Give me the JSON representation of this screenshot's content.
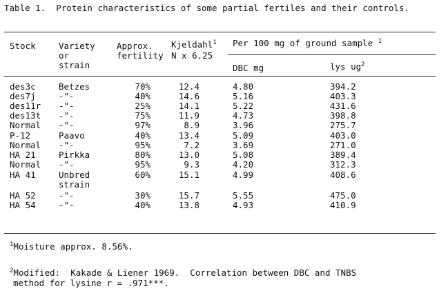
{
  "title": "Table 1.  Protein characteristics of some partial fertiles and their controls.",
  "headers": {
    "stock": "Stock",
    "variety_l1": "Variety",
    "variety_l2": "or",
    "variety_l3": "strain",
    "fertility_l1": "Approx.",
    "fertility_l2": "fertility",
    "kjeldahl_l1": "Kjeldahl",
    "kjeldahl_sup": "1",
    "kjeldahl_l2": "N x 6.25",
    "per100": "Per 100 mg of ground sample",
    "per100_sup": "1",
    "dbc": "DBC mg",
    "lys": "lys ug",
    "lys_sup": "2"
  },
  "rows": [
    {
      "stock": "des3c",
      "variety": "Betzes",
      "fertility": "70%",
      "kjeldahl": "12.4",
      "dbc": "4.80",
      "lys": "394.2"
    },
    {
      "stock": "des7j",
      "variety": "-\"-",
      "fertility": "40%",
      "kjeldahl": "14.6",
      "dbc": "5.16",
      "lys": "403.3"
    },
    {
      "stock": "des11r",
      "variety": "-\"-",
      "fertility": "25%",
      "kjeldahl": "14.1",
      "dbc": "5.22",
      "lys": "431.6"
    },
    {
      "stock": "des13t",
      "variety": "-\"-",
      "fertility": "75%",
      "kjeldahl": "11.9",
      "dbc": "4.73",
      "lys": "398.8"
    },
    {
      "stock": "Normal",
      "variety": "-\"-",
      "fertility": "97%",
      "kjeldahl": "8.9",
      "dbc": "3.96",
      "lys": "275.7"
    },
    {
      "stock": "P-12",
      "variety": "Paavo",
      "fertility": "40%",
      "kjeldahl": "13.4",
      "dbc": "5.09",
      "lys": "403.0"
    },
    {
      "stock": "Normal",
      "variety": "-\"-",
      "fertility": "95%",
      "kjeldahl": "7.2",
      "dbc": "3.69",
      "lys": "271.0"
    },
    {
      "stock": "HA 21",
      "variety": "Pirkka",
      "fertility": "80%",
      "kjeldahl": "13.0",
      "dbc": "5.08",
      "lys": "389.4"
    },
    {
      "stock": "Normal",
      "variety": "-\"-",
      "fertility": "95%",
      "kjeldahl": "9.3",
      "dbc": "4.20",
      "lys": "312.3"
    },
    {
      "stock": "HA 41",
      "variety": "Unbred",
      "variety2": "strain",
      "fertility": "60%",
      "kjeldahl": "15.1",
      "dbc": "4.99",
      "lys": "408.6"
    },
    {
      "stock": "HA 52",
      "variety": "-\"-",
      "fertility": "30%",
      "kjeldahl": "15.7",
      "dbc": "5.55",
      "lys": "475.0"
    },
    {
      "stock": "HA 54",
      "variety": "-\"-",
      "fertility": "40%",
      "kjeldahl": "13.8",
      "dbc": "4.93",
      "lys": "410.9"
    }
  ],
  "footnotes": {
    "fn1_sup": "1",
    "fn1": "Moisture approx. 8.56%.",
    "fn2_sup": "2",
    "fn2_l1": "Modified:  Kakade & Liener 1969.  Correlation between DBC and TNBS",
    "fn2_l2": "method for lysine r = .971***."
  }
}
